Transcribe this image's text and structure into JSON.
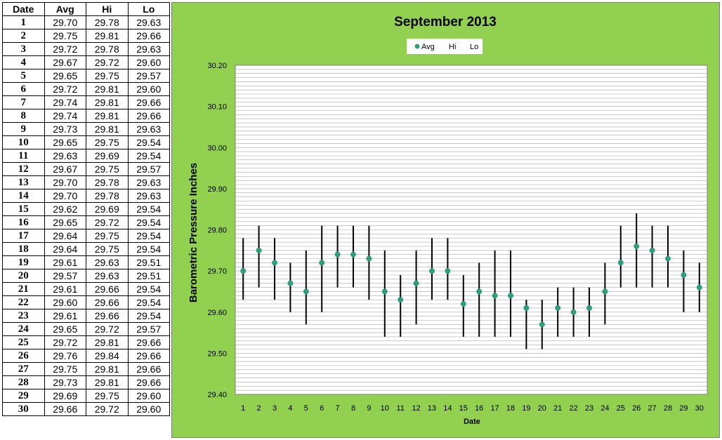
{
  "table": {
    "headers": [
      "Date",
      "Avg",
      "Hi",
      "Lo"
    ],
    "rows": [
      [
        "1",
        "29.70",
        "29.78",
        "29.63"
      ],
      [
        "2",
        "29.75",
        "29.81",
        "29.66"
      ],
      [
        "3",
        "29.72",
        "29.78",
        "29.63"
      ],
      [
        "4",
        "29.67",
        "29.72",
        "29.60"
      ],
      [
        "5",
        "29.65",
        "29.75",
        "29.57"
      ],
      [
        "6",
        "29.72",
        "29.81",
        "29.60"
      ],
      [
        "7",
        "29.74",
        "29.81",
        "29.66"
      ],
      [
        "8",
        "29.74",
        "29.81",
        "29.66"
      ],
      [
        "9",
        "29.73",
        "29.81",
        "29.63"
      ],
      [
        "10",
        "29.65",
        "29.75",
        "29.54"
      ],
      [
        "11",
        "29.63",
        "29.69",
        "29.54"
      ],
      [
        "12",
        "29.67",
        "29.75",
        "29.57"
      ],
      [
        "13",
        "29.70",
        "29.78",
        "29.63"
      ],
      [
        "14",
        "29.70",
        "29.78",
        "29.63"
      ],
      [
        "15",
        "29.62",
        "29.69",
        "29.54"
      ],
      [
        "16",
        "29.65",
        "29.72",
        "29.54"
      ],
      [
        "17",
        "29.64",
        "29.75",
        "29.54"
      ],
      [
        "18",
        "29.64",
        "29.75",
        "29.54"
      ],
      [
        "19",
        "29.61",
        "29.63",
        "29.51"
      ],
      [
        "20",
        "29.57",
        "29.63",
        "29.51"
      ],
      [
        "21",
        "29.61",
        "29.66",
        "29.54"
      ],
      [
        "22",
        "29.60",
        "29.66",
        "29.54"
      ],
      [
        "23",
        "29.61",
        "29.66",
        "29.54"
      ],
      [
        "24",
        "29.65",
        "29.72",
        "29.57"
      ],
      [
        "25",
        "29.72",
        "29.81",
        "29.66"
      ],
      [
        "26",
        "29.76",
        "29.84",
        "29.66"
      ],
      [
        "27",
        "29.75",
        "29.81",
        "29.66"
      ],
      [
        "28",
        "29.73",
        "29.81",
        "29.66"
      ],
      [
        "29",
        "29.69",
        "29.75",
        "29.60"
      ],
      [
        "30",
        "29.66",
        "29.72",
        "29.60"
      ]
    ]
  },
  "chart_data": {
    "type": "scatter",
    "title": "September 2013",
    "xlabel": "Date",
    "ylabel": "Barometric Pressure Inches",
    "ylim": [
      29.4,
      30.2
    ],
    "y_ticks": [
      "29.40",
      "29.50",
      "29.60",
      "29.70",
      "29.80",
      "29.90",
      "30.00",
      "30.10",
      "30.20"
    ],
    "minor_grid_step": 0.01,
    "grid": true,
    "legend": {
      "placement": "top-center",
      "entries": [
        "Avg",
        "Hi",
        "Lo"
      ]
    },
    "x": [
      1,
      2,
      3,
      4,
      5,
      6,
      7,
      8,
      9,
      10,
      11,
      12,
      13,
      14,
      15,
      16,
      17,
      18,
      19,
      20,
      21,
      22,
      23,
      24,
      25,
      26,
      27,
      28,
      29,
      30
    ],
    "series": [
      {
        "name": "Avg",
        "marker": "circle",
        "color": "#2e9e7c",
        "values": [
          29.7,
          29.75,
          29.72,
          29.67,
          29.65,
          29.72,
          29.74,
          29.74,
          29.73,
          29.65,
          29.63,
          29.67,
          29.7,
          29.7,
          29.62,
          29.65,
          29.64,
          29.64,
          29.61,
          29.57,
          29.61,
          29.6,
          29.61,
          29.65,
          29.72,
          29.76,
          29.75,
          29.73,
          29.69,
          29.66
        ]
      },
      {
        "name": "Hi",
        "marker": "none",
        "values": [
          29.78,
          29.81,
          29.78,
          29.72,
          29.75,
          29.81,
          29.81,
          29.81,
          29.81,
          29.75,
          29.69,
          29.75,
          29.78,
          29.78,
          29.69,
          29.72,
          29.75,
          29.75,
          29.63,
          29.63,
          29.66,
          29.66,
          29.66,
          29.72,
          29.81,
          29.84,
          29.81,
          29.81,
          29.75,
          29.72
        ]
      },
      {
        "name": "Lo",
        "marker": "none",
        "values": [
          29.63,
          29.66,
          29.63,
          29.6,
          29.57,
          29.6,
          29.66,
          29.66,
          29.63,
          29.54,
          29.54,
          29.57,
          29.63,
          29.63,
          29.54,
          29.54,
          29.54,
          29.54,
          29.51,
          29.51,
          29.54,
          29.54,
          29.54,
          29.57,
          29.66,
          29.66,
          29.66,
          29.66,
          29.6,
          29.6
        ]
      }
    ],
    "colors": {
      "panel": "#92d050",
      "plot": "#ffffff",
      "avg": "#2e9e7c",
      "range_bar": "#000000",
      "grid": "#a6a6a6"
    }
  }
}
